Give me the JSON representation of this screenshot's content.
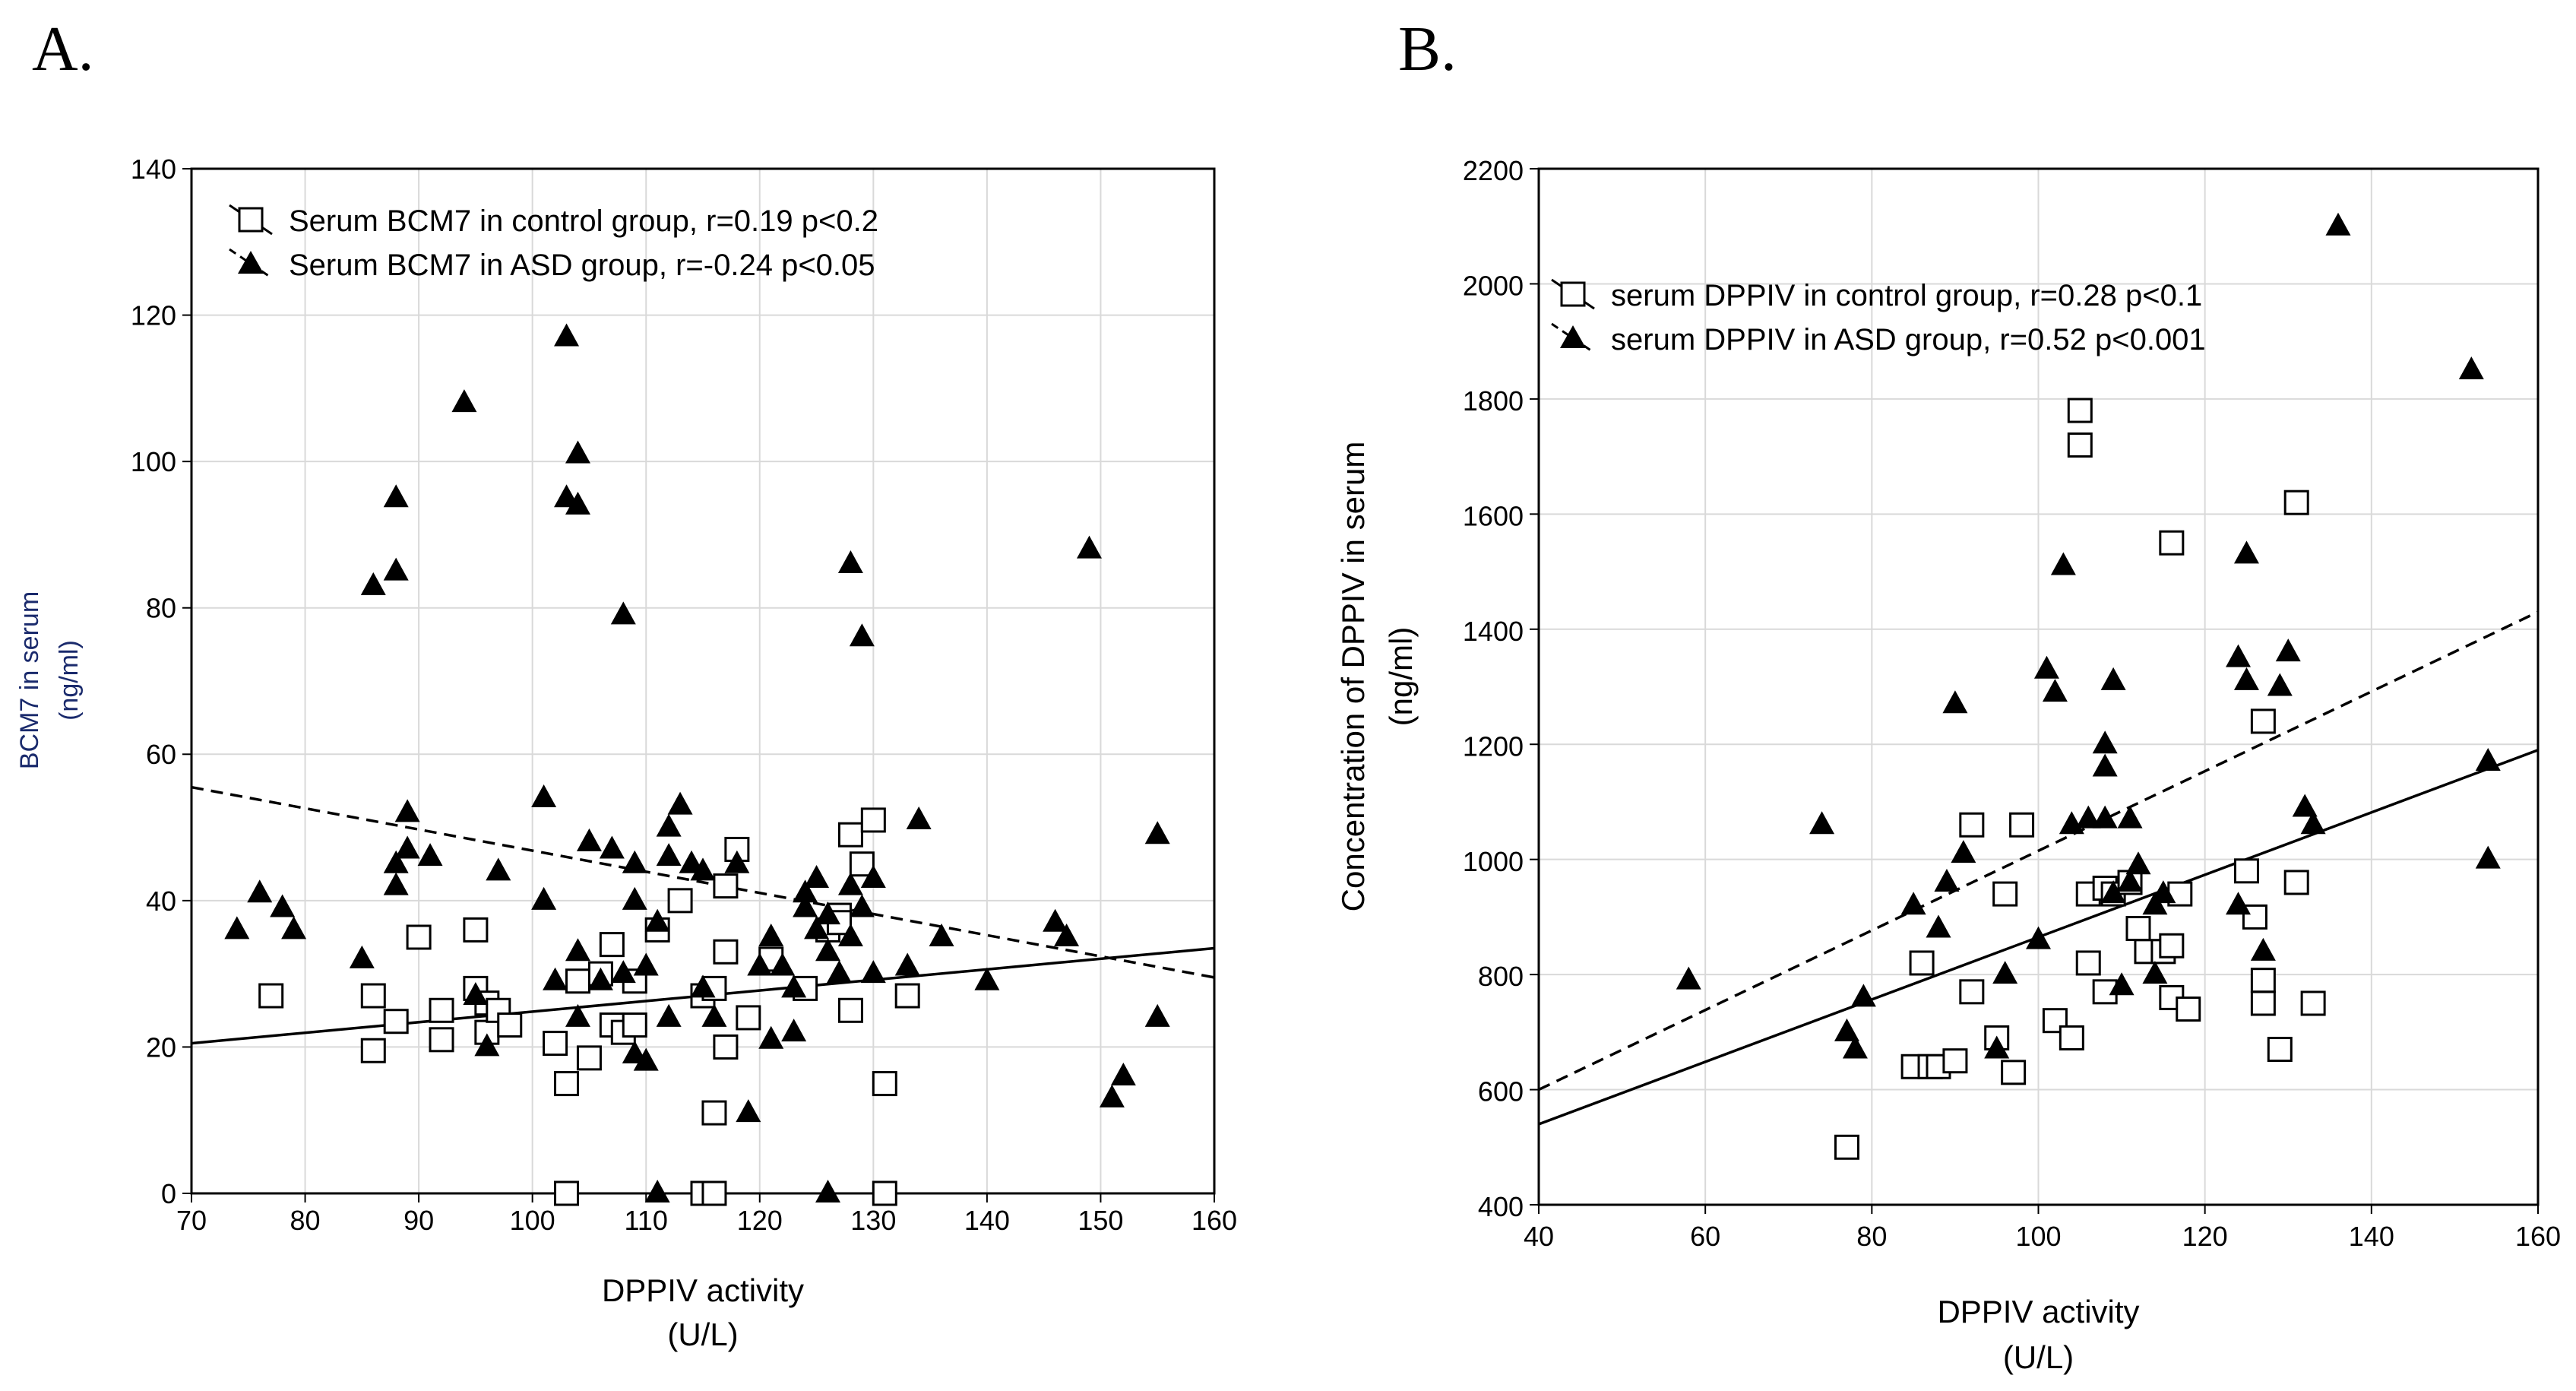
{
  "figure": {
    "panels": [
      "A.",
      "B."
    ]
  },
  "chart_data": [
    {
      "type": "scatter",
      "panel": "A.",
      "xlabel": "DPPIV activity",
      "xunit": "(U/L)",
      "ylabel": "BCM7 in serum",
      "yunit": "(ng/ml)",
      "xlim": [
        70,
        160
      ],
      "ylim": [
        0,
        140
      ],
      "xticks": [
        70,
        80,
        90,
        100,
        110,
        120,
        130,
        140,
        150,
        160
      ],
      "yticks": [
        0,
        20,
        40,
        60,
        80,
        100,
        120,
        140
      ],
      "grid": true,
      "legend_position": "top-left",
      "series": [
        {
          "name": "Serum BCM7 in control group, r=0.19 p<0.2",
          "marker": "open-square",
          "line": "solid",
          "fit": [
            [
              70,
              20.5
            ],
            [
              160,
              33.5
            ]
          ],
          "points": [
            [
              77,
              27
            ],
            [
              86,
              27
            ],
            [
              86,
              19.5
            ],
            [
              88,
              23.5
            ],
            [
              90,
              35
            ],
            [
              92,
              21
            ],
            [
              92,
              25
            ],
            [
              95,
              36
            ],
            [
              95,
              28
            ],
            [
              96,
              26
            ],
            [
              96,
              22
            ],
            [
              97,
              25
            ],
            [
              98,
              23
            ],
            [
              102,
              20.5
            ],
            [
              103,
              15
            ],
            [
              103,
              0
            ],
            [
              104,
              29
            ],
            [
              105,
              18.5
            ],
            [
              106,
              30
            ],
            [
              107,
              34
            ],
            [
              107,
              23
            ],
            [
              108,
              22
            ],
            [
              109,
              29
            ],
            [
              109,
              23
            ],
            [
              111,
              36
            ],
            [
              113,
              40
            ],
            [
              115,
              27
            ],
            [
              115,
              0
            ],
            [
              116,
              0
            ],
            [
              116,
              28
            ],
            [
              116,
              11
            ],
            [
              117,
              20
            ],
            [
              117,
              33
            ],
            [
              117,
              42
            ],
            [
              118,
              47
            ],
            [
              119,
              24
            ],
            [
              121,
              32
            ],
            [
              124,
              28
            ],
            [
              126,
              36
            ],
            [
              127,
              38
            ],
            [
              127,
              37
            ],
            [
              128,
              49
            ],
            [
              128,
              25
            ],
            [
              129,
              45
            ],
            [
              130,
              51
            ],
            [
              131,
              15
            ],
            [
              131,
              0
            ],
            [
              133,
              27
            ]
          ]
        },
        {
          "name": "Serum BCM7 in ASD group, r=-0.24 p<0.05",
          "marker": "filled-triangle",
          "line": "dashed",
          "fit": [
            [
              70,
              55.5
            ],
            [
              160,
              29.5
            ]
          ],
          "points": [
            [
              74,
              36
            ],
            [
              76,
              41
            ],
            [
              78,
              39
            ],
            [
              79,
              36
            ],
            [
              85,
              32
            ],
            [
              86,
              83
            ],
            [
              88,
              85
            ],
            [
              88,
              95
            ],
            [
              88,
              42
            ],
            [
              88,
              45
            ],
            [
              89,
              47
            ],
            [
              89,
              52
            ],
            [
              91,
              46
            ],
            [
              94,
              108
            ],
            [
              95,
              27
            ],
            [
              96,
              20
            ],
            [
              97,
              44
            ],
            [
              101,
              54
            ],
            [
              101,
              40
            ],
            [
              102,
              29
            ],
            [
              103,
              117
            ],
            [
              103,
              95
            ],
            [
              104,
              94
            ],
            [
              104,
              101
            ],
            [
              104,
              33
            ],
            [
              104,
              24
            ],
            [
              105,
              48
            ],
            [
              106,
              29
            ],
            [
              107,
              47
            ],
            [
              108,
              30
            ],
            [
              108,
              79
            ],
            [
              109,
              40
            ],
            [
              109,
              45
            ],
            [
              109,
              19
            ],
            [
              110,
              18
            ],
            [
              110,
              31
            ],
            [
              111,
              37
            ],
            [
              111,
              0
            ],
            [
              112,
              24
            ],
            [
              112,
              46
            ],
            [
              112,
              50
            ],
            [
              113,
              53
            ],
            [
              114,
              45
            ],
            [
              115,
              28
            ],
            [
              115,
              44
            ],
            [
              116,
              24
            ],
            [
              118,
              45
            ],
            [
              119,
              11
            ],
            [
              120,
              31
            ],
            [
              121,
              21
            ],
            [
              121,
              35
            ],
            [
              122,
              31
            ],
            [
              123,
              28
            ],
            [
              123,
              22
            ],
            [
              124,
              41
            ],
            [
              124,
              39
            ],
            [
              125,
              43
            ],
            [
              125,
              36
            ],
            [
              126,
              0
            ],
            [
              126,
              33
            ],
            [
              126,
              38
            ],
            [
              127,
              30
            ],
            [
              128,
              86
            ],
            [
              128,
              35
            ],
            [
              128,
              42
            ],
            [
              129,
              76
            ],
            [
              129,
              39
            ],
            [
              130,
              43
            ],
            [
              130,
              30
            ],
            [
              133,
              31
            ],
            [
              134,
              51
            ],
            [
              136,
              35
            ],
            [
              140,
              29
            ],
            [
              146,
              37
            ],
            [
              147,
              35
            ],
            [
              149,
              88
            ],
            [
              151,
              13
            ],
            [
              152,
              16
            ],
            [
              155,
              24
            ],
            [
              155,
              49
            ]
          ]
        }
      ]
    },
    {
      "type": "scatter",
      "panel": "B.",
      "xlabel": "DPPIV activity",
      "xunit": "(U/L)",
      "ylabel": "Concentration of DPPIV in serum",
      "yunit": "(ng/ml)",
      "xlim": [
        40,
        160
      ],
      "ylim": [
        400,
        2200
      ],
      "xticks": [
        40,
        60,
        80,
        100,
        120,
        140,
        160
      ],
      "yticks": [
        400,
        600,
        800,
        1000,
        1200,
        1400,
        1600,
        1800,
        2000,
        2200
      ],
      "grid": true,
      "legend_position": "top-left",
      "series": [
        {
          "name": "serum DPPIV in control group, r=0.28 p<0.1",
          "marker": "open-square",
          "line": "solid",
          "fit": [
            [
              40,
              540
            ],
            [
              160,
              1190
            ]
          ],
          "points": [
            [
              77,
              500
            ],
            [
              85,
              640
            ],
            [
              86,
              820
            ],
            [
              87,
              640
            ],
            [
              88,
              640
            ],
            [
              90,
              650
            ],
            [
              92,
              1060
            ],
            [
              92,
              770
            ],
            [
              95,
              690
            ],
            [
              96,
              940
            ],
            [
              97,
              630
            ],
            [
              98,
              1060
            ],
            [
              102,
              720
            ],
            [
              104,
              690
            ],
            [
              105,
              1780
            ],
            [
              105,
              1720
            ],
            [
              106,
              940
            ],
            [
              106,
              820
            ],
            [
              108,
              770
            ],
            [
              108,
              950
            ],
            [
              109,
              940
            ],
            [
              111,
              960
            ],
            [
              112,
              880
            ],
            [
              113,
              840
            ],
            [
              115,
              840
            ],
            [
              116,
              1550
            ],
            [
              116,
              850
            ],
            [
              116,
              760
            ],
            [
              117,
              940
            ],
            [
              118,
              740
            ],
            [
              125,
              980
            ],
            [
              126,
              900
            ],
            [
              127,
              750
            ],
            [
              127,
              790
            ],
            [
              127,
              1240
            ],
            [
              129,
              670
            ],
            [
              131,
              960
            ],
            [
              131,
              1620
            ],
            [
              133,
              750
            ]
          ]
        },
        {
          "name": "serum DPPIV in ASD group, r=0.52 p<0.001",
          "marker": "filled-triangle",
          "line": "dashed",
          "fit": [
            [
              40,
              600
            ],
            [
              160,
              1430
            ]
          ],
          "points": [
            [
              58,
              790
            ],
            [
              74,
              1060
            ],
            [
              77,
              700
            ],
            [
              78,
              670
            ],
            [
              79,
              760
            ],
            [
              85,
              920
            ],
            [
              88,
              880
            ],
            [
              89,
              960
            ],
            [
              90,
              1270
            ],
            [
              91,
              1010
            ],
            [
              96,
              800
            ],
            [
              95,
              670
            ],
            [
              100,
              860
            ],
            [
              101,
              1330
            ],
            [
              102,
              1290
            ],
            [
              103,
              1510
            ],
            [
              104,
              1060
            ],
            [
              106,
              1070
            ],
            [
              108,
              1200
            ],
            [
              108,
              1160
            ],
            [
              108,
              1070
            ],
            [
              109,
              1310
            ],
            [
              109,
              940
            ],
            [
              110,
              780
            ],
            [
              111,
              960
            ],
            [
              111,
              1070
            ],
            [
              112,
              990
            ],
            [
              114,
              800
            ],
            [
              114,
              920
            ],
            [
              115,
              940
            ],
            [
              124,
              1350
            ],
            [
              124,
              920
            ],
            [
              125,
              1530
            ],
            [
              125,
              1310
            ],
            [
              127,
              840
            ],
            [
              129,
              1300
            ],
            [
              130,
              1360
            ],
            [
              132,
              1090
            ],
            [
              133,
              1060
            ],
            [
              136,
              2100
            ],
            [
              152,
              1850
            ],
            [
              154,
              1170
            ],
            [
              154,
              1000
            ]
          ]
        }
      ]
    }
  ]
}
